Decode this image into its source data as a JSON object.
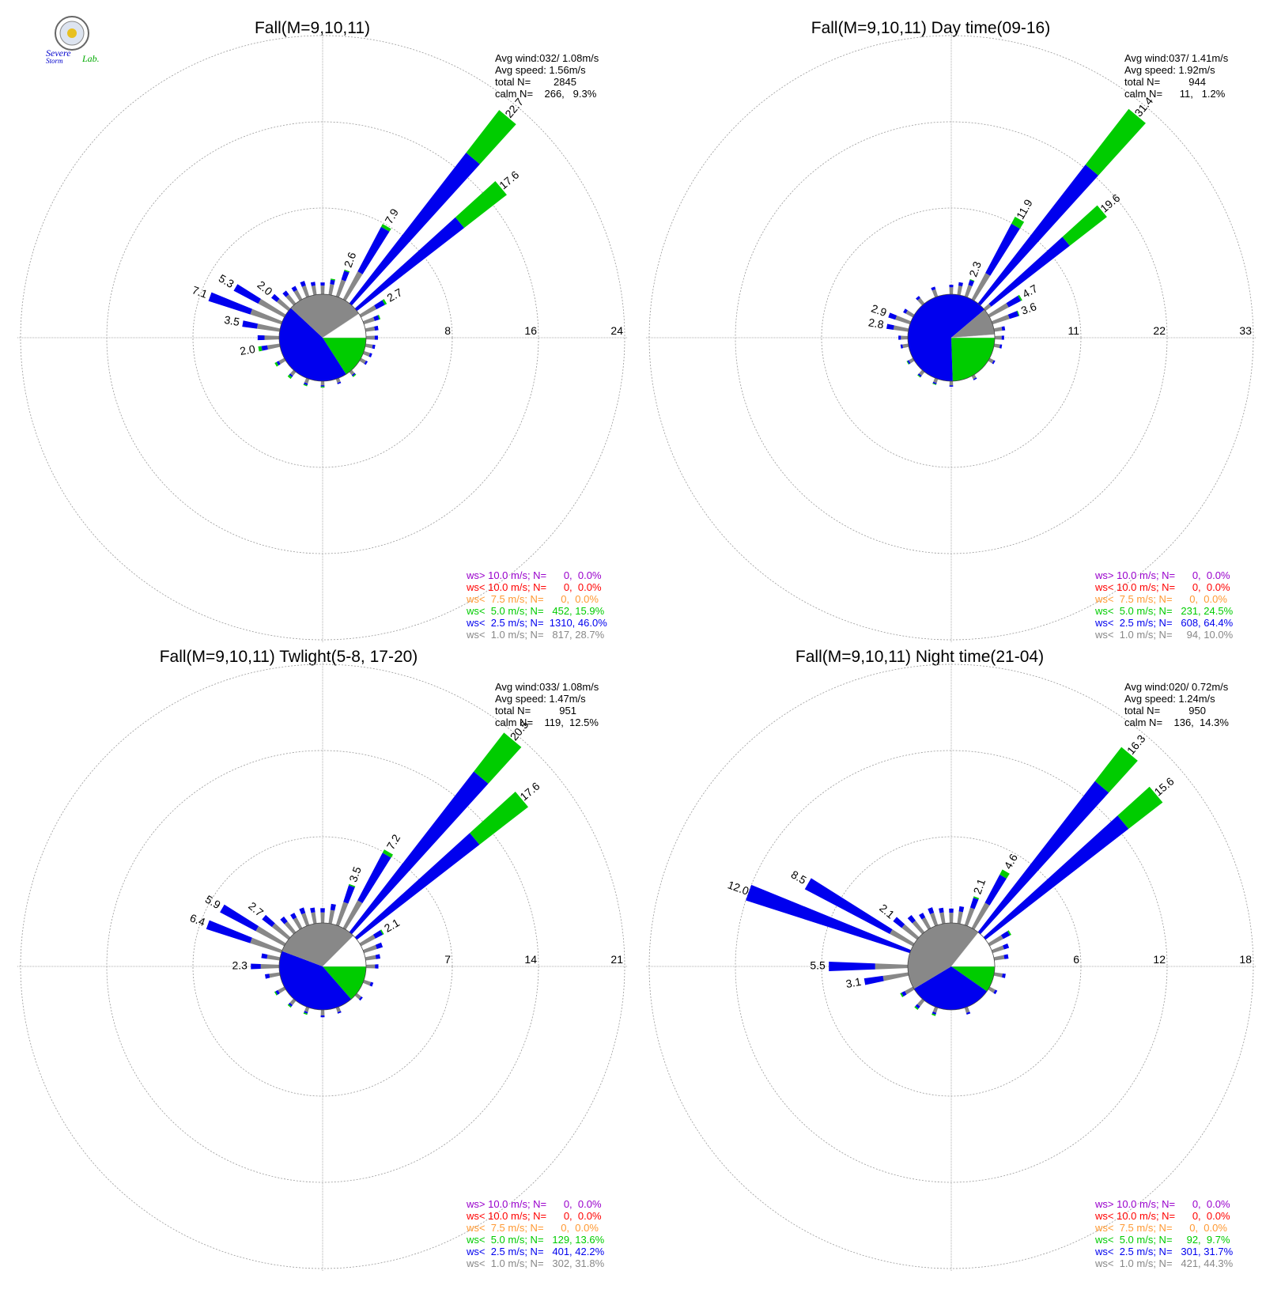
{
  "logo": {
    "line1": "Severe",
    "line2": "Storm",
    "line3": "Lab."
  },
  "colors": {
    "ws_gt_10": "#9900cc",
    "ws_lt_10": "#ff0000",
    "ws_lt_7_5": "#ff9933",
    "ws_lt_5": "#00cc00",
    "ws_lt_2_5": "#0000ee",
    "ws_lt_1": "#888888",
    "calm": "#ffffff",
    "grid": "#999999"
  },
  "chart_data": [
    {
      "type": "polar-bar",
      "title": "Fall(M=9,10,11)",
      "stats": [
        "Avg wind:032/ 1.08m/s",
        "Avg speed: 1.56m/s",
        "total N=        2845",
        "calm N=    266,   9.3%"
      ],
      "ring_labels": [
        "8",
        "16",
        "24"
      ],
      "rmax": 24,
      "pie": [
        28.7,
        46.0,
        15.9,
        9.3
      ],
      "bars": [
        {
          "dir": 0,
          "total": 1.1,
          "green": 0.0
        },
        {
          "dir": 10,
          "total": 1.5,
          "green": 0.1
        },
        {
          "dir": 20,
          "total": 2.6,
          "green": 0.1,
          "label": "2.6"
        },
        {
          "dir": 30,
          "total": 7.9,
          "green": 0.3,
          "label": "7.9"
        },
        {
          "dir": 40,
          "total": 22.7,
          "green": 5.0,
          "label": "22.7"
        },
        {
          "dir": 50,
          "total": 17.6,
          "green": 5.0,
          "label": "17.6"
        },
        {
          "dir": 60,
          "total": 2.7,
          "green": 0.2,
          "label": "2.7"
        },
        {
          "dir": 70,
          "total": 1.6,
          "green": 0.1
        },
        {
          "dir": 80,
          "total": 1.2,
          "green": 0.0
        },
        {
          "dir": 90,
          "total": 1.1,
          "green": 0.0
        },
        {
          "dir": 100,
          "total": 0.9,
          "green": 0.0
        },
        {
          "dir": 110,
          "total": 0.8,
          "green": 0.0
        },
        {
          "dir": 120,
          "total": 0.7,
          "green": 0.0
        },
        {
          "dir": 140,
          "total": 0.6,
          "green": 0.1
        },
        {
          "dir": 160,
          "total": 0.5,
          "green": 0.0
        },
        {
          "dir": 180,
          "total": 0.6,
          "green": 0.1
        },
        {
          "dir": 200,
          "total": 0.7,
          "green": 0.1
        },
        {
          "dir": 220,
          "total": 0.8,
          "green": 0.2
        },
        {
          "dir": 240,
          "total": 1.0,
          "green": 0.2
        },
        {
          "dir": 260,
          "total": 2.0,
          "green": 0.3,
          "label": "2.0"
        },
        {
          "dir": 270,
          "total": 2.0,
          "green": 0.0
        },
        {
          "dir": 280,
          "total": 3.5,
          "green": 0.0,
          "label": "3.5"
        },
        {
          "dir": 290,
          "total": 7.1,
          "green": 0.0,
          "label": "7.1"
        },
        {
          "dir": 300,
          "total": 5.3,
          "green": 0.0,
          "label": "5.3"
        },
        {
          "dir": 310,
          "total": 2.0,
          "green": 0.0,
          "label": "2.0"
        },
        {
          "dir": 320,
          "total": 1.5,
          "green": 0.0
        },
        {
          "dir": 330,
          "total": 1.4,
          "green": 0.0
        },
        {
          "dir": 340,
          "total": 1.5,
          "green": 0.0
        },
        {
          "dir": 350,
          "total": 1.2,
          "green": 0.0
        }
      ],
      "legend": [
        {
          "text": "ws> 10.0 m/s; N=      0,  0.0%",
          "class": "ws_gt_10"
        },
        {
          "text": "ws< 10.0 m/s; N=      0,  0.0%",
          "class": "ws_lt_10"
        },
        {
          "text": "ws<  7.5 m/s; N=      0,  0.0%",
          "class": "ws_lt_7_5"
        },
        {
          "text": "ws<  5.0 m/s; N=   452, 15.9%",
          "class": "ws_lt_5"
        },
        {
          "text": "ws<  2.5 m/s; N=  1310, 46.0%",
          "class": "ws_lt_2_5"
        },
        {
          "text": "ws<  1.0 m/s; N=   817, 28.7%",
          "class": "ws_lt_1"
        }
      ]
    },
    {
      "type": "polar-bar",
      "title": "Fall(M=9,10,11) Day time(09-16)",
      "stats": [
        "Avg wind:037/ 1.41m/s",
        "Avg speed: 1.92m/s",
        "total N=          944",
        "calm N=      11,   1.2%"
      ],
      "ring_labels": [
        "11",
        "22",
        "33"
      ],
      "rmax": 33,
      "pie": [
        10.0,
        64.4,
        24.5,
        1.2
      ],
      "bars": [
        {
          "dir": 0,
          "total": 1.2,
          "green": 0.0
        },
        {
          "dir": 10,
          "total": 1.6,
          "green": 0.0
        },
        {
          "dir": 20,
          "total": 2.3,
          "green": 0.1,
          "label": "2.3"
        },
        {
          "dir": 30,
          "total": 11.9,
          "green": 1.0,
          "label": "11.9"
        },
        {
          "dir": 40,
          "total": 31.4,
          "green": 9.0,
          "label": "31.4"
        },
        {
          "dir": 50,
          "total": 19.6,
          "green": 6.0,
          "label": "19.6"
        },
        {
          "dir": 60,
          "total": 4.7,
          "green": 0.2,
          "label": "4.7"
        },
        {
          "dir": 70,
          "total": 3.6,
          "green": 0.1,
          "label": "3.6"
        },
        {
          "dir": 80,
          "total": 1.4,
          "green": 0.0
        },
        {
          "dir": 90,
          "total": 1.2,
          "green": 0.0
        },
        {
          "dir": 100,
          "total": 1.0,
          "green": 0.0
        },
        {
          "dir": 120,
          "total": 0.8,
          "green": 0.0
        },
        {
          "dir": 150,
          "total": 0.6,
          "green": 0.0
        },
        {
          "dir": 180,
          "total": 0.7,
          "green": 0.0
        },
        {
          "dir": 200,
          "total": 0.8,
          "green": 0.1
        },
        {
          "dir": 220,
          "total": 0.9,
          "green": 0.1
        },
        {
          "dir": 240,
          "total": 0.9,
          "green": 0.1
        },
        {
          "dir": 260,
          "total": 1.0,
          "green": 0.0
        },
        {
          "dir": 270,
          "total": 1.2,
          "green": 0.0
        },
        {
          "dir": 280,
          "total": 2.8,
          "green": 0.0,
          "label": "2.8"
        },
        {
          "dir": 290,
          "total": 2.9,
          "green": 0.0,
          "label": "2.9"
        },
        {
          "dir": 300,
          "total": 1.4,
          "green": 0.0
        },
        {
          "dir": 320,
          "total": 1.2,
          "green": 0.0
        },
        {
          "dir": 340,
          "total": 1.3,
          "green": 0.0
        }
      ],
      "legend": [
        {
          "text": "ws> 10.0 m/s; N=      0,  0.0%",
          "class": "ws_gt_10"
        },
        {
          "text": "ws< 10.0 m/s; N=      0,  0.0%",
          "class": "ws_lt_10"
        },
        {
          "text": "ws<  7.5 m/s; N=      0,  0.0%",
          "class": "ws_lt_7_5"
        },
        {
          "text": "ws<  5.0 m/s; N=   231, 24.5%",
          "class": "ws_lt_5"
        },
        {
          "text": "ws<  2.5 m/s; N=   608, 64.4%",
          "class": "ws_lt_2_5"
        },
        {
          "text": "ws<  1.0 m/s; N=     94, 10.0%",
          "class": "ws_lt_1"
        }
      ]
    },
    {
      "type": "polar-bar",
      "title": "Fall(M=9,10,11) Twlight(5-8, 17-20)",
      "stats": [
        "Avg wind:033/ 1.08m/s",
        "Avg speed: 1.47m/s",
        "total N=          951",
        "calm N=    119,  12.5%"
      ],
      "ring_labels": [
        "7",
        "14",
        "21"
      ],
      "rmax": 21,
      "pie": [
        31.8,
        42.2,
        13.6,
        12.5
      ],
      "bars": [
        {
          "dir": 0,
          "total": 1.2,
          "green": 0.0
        },
        {
          "dir": 10,
          "total": 1.6,
          "green": 0.0
        },
        {
          "dir": 20,
          "total": 3.5,
          "green": 0.1,
          "label": "3.5"
        },
        {
          "dir": 30,
          "total": 7.2,
          "green": 0.3,
          "label": "7.2"
        },
        {
          "dir": 40,
          "total": 20.5,
          "green": 4.0,
          "label": "20.5"
        },
        {
          "dir": 50,
          "total": 17.6,
          "green": 5.0,
          "label": "17.6"
        },
        {
          "dir": 60,
          "total": 2.1,
          "green": 0.1,
          "label": "2.1"
        },
        {
          "dir": 70,
          "total": 1.6,
          "green": 0.0
        },
        {
          "dir": 80,
          "total": 1.2,
          "green": 0.0
        },
        {
          "dir": 90,
          "total": 1.0,
          "green": 0.0
        },
        {
          "dir": 110,
          "total": 0.8,
          "green": 0.0
        },
        {
          "dir": 130,
          "total": 0.6,
          "green": 0.0
        },
        {
          "dir": 160,
          "total": 0.5,
          "green": 0.0
        },
        {
          "dir": 180,
          "total": 0.6,
          "green": 0.0
        },
        {
          "dir": 200,
          "total": 0.6,
          "green": 0.1
        },
        {
          "dir": 220,
          "total": 0.7,
          "green": 0.1
        },
        {
          "dir": 240,
          "total": 0.9,
          "green": 0.1
        },
        {
          "dir": 260,
          "total": 1.2,
          "green": 0.0
        },
        {
          "dir": 270,
          "total": 2.3,
          "green": 0.0,
          "label": "2.3"
        },
        {
          "dir": 280,
          "total": 1.5,
          "green": 0.0
        },
        {
          "dir": 290,
          "total": 6.4,
          "green": 0.0,
          "label": "6.4"
        },
        {
          "dir": 300,
          "total": 5.9,
          "green": 0.0,
          "label": "5.9"
        },
        {
          "dir": 310,
          "total": 2.7,
          "green": 0.0,
          "label": "2.7"
        },
        {
          "dir": 320,
          "total": 1.6,
          "green": 0.0
        },
        {
          "dir": 330,
          "total": 1.4,
          "green": 0.0
        },
        {
          "dir": 340,
          "total": 1.5,
          "green": 0.0
        },
        {
          "dir": 350,
          "total": 1.3,
          "green": 0.0
        }
      ],
      "legend": [
        {
          "text": "ws> 10.0 m/s; N=      0,  0.0%",
          "class": "ws_gt_10"
        },
        {
          "text": "ws< 10.0 m/s; N=      0,  0.0%",
          "class": "ws_lt_10"
        },
        {
          "text": "ws<  7.5 m/s; N=      0,  0.0%",
          "class": "ws_lt_7_5"
        },
        {
          "text": "ws<  5.0 m/s; N=   129, 13.6%",
          "class": "ws_lt_5"
        },
        {
          "text": "ws<  2.5 m/s; N=   401, 42.2%",
          "class": "ws_lt_2_5"
        },
        {
          "text": "ws<  1.0 m/s; N=   302, 31.8%",
          "class": "ws_lt_1"
        }
      ]
    },
    {
      "type": "polar-bar",
      "title": "Fall(M=9,10,11) Night time(21-04)",
      "stats": [
        "Avg wind:020/ 0.72m/s",
        "Avg speed: 1.24m/s",
        "total N=          950",
        "calm N=    136,  14.3%"
      ],
      "ring_labels": [
        "6",
        "12",
        "18"
      ],
      "rmax": 18,
      "pie": [
        44.3,
        31.7,
        9.7,
        14.3
      ],
      "bars": [
        {
          "dir": 0,
          "total": 1.0,
          "green": 0.0
        },
        {
          "dir": 10,
          "total": 1.2,
          "green": 0.0
        },
        {
          "dir": 20,
          "total": 2.1,
          "green": 0.1,
          "label": "2.1"
        },
        {
          "dir": 30,
          "total": 4.6,
          "green": 0.4,
          "label": "4.6"
        },
        {
          "dir": 40,
          "total": 16.3,
          "green": 3.0,
          "label": "16.3"
        },
        {
          "dir": 50,
          "total": 15.6,
          "green": 3.0,
          "label": "15.6"
        },
        {
          "dir": 60,
          "total": 1.7,
          "green": 0.1
        },
        {
          "dir": 70,
          "total": 1.2,
          "green": 0.0
        },
        {
          "dir": 80,
          "total": 1.0,
          "green": 0.0
        },
        {
          "dir": 100,
          "total": 0.8,
          "green": 0.0
        },
        {
          "dir": 120,
          "total": 0.6,
          "green": 0.0
        },
        {
          "dir": 160,
          "total": 0.5,
          "green": 0.0
        },
        {
          "dir": 200,
          "total": 0.6,
          "green": 0.1
        },
        {
          "dir": 220,
          "total": 0.8,
          "green": 0.1
        },
        {
          "dir": 240,
          "total": 1.0,
          "green": 0.1
        },
        {
          "dir": 260,
          "total": 3.1,
          "green": 0.0,
          "label": "3.1"
        },
        {
          "dir": 270,
          "total": 5.5,
          "green": 0.0,
          "label": "5.5"
        },
        {
          "dir": 290,
          "total": 12.0,
          "green": 0.0,
          "label": "12.0"
        },
        {
          "dir": 300,
          "total": 8.5,
          "green": 0.0,
          "label": "8.5"
        },
        {
          "dir": 310,
          "total": 2.1,
          "green": 0.0,
          "label": "2.1"
        },
        {
          "dir": 320,
          "total": 1.5,
          "green": 0.0
        },
        {
          "dir": 330,
          "total": 1.2,
          "green": 0.0
        },
        {
          "dir": 340,
          "total": 1.3,
          "green": 0.0
        },
        {
          "dir": 350,
          "total": 1.1,
          "green": 0.0
        }
      ],
      "legend": [
        {
          "text": "ws> 10.0 m/s; N=      0,  0.0%",
          "class": "ws_gt_10"
        },
        {
          "text": "ws< 10.0 m/s; N=      0,  0.0%",
          "class": "ws_lt_10"
        },
        {
          "text": "ws<  7.5 m/s; N=      0,  0.0%",
          "class": "ws_lt_7_5"
        },
        {
          "text": "ws<  5.0 m/s; N=     92,  9.7%",
          "class": "ws_lt_5"
        },
        {
          "text": "ws<  2.5 m/s; N=   301, 31.7%",
          "class": "ws_lt_2_5"
        },
        {
          "text": "ws<  1.0 m/s; N=   421, 44.3%",
          "class": "ws_lt_1"
        }
      ]
    }
  ]
}
